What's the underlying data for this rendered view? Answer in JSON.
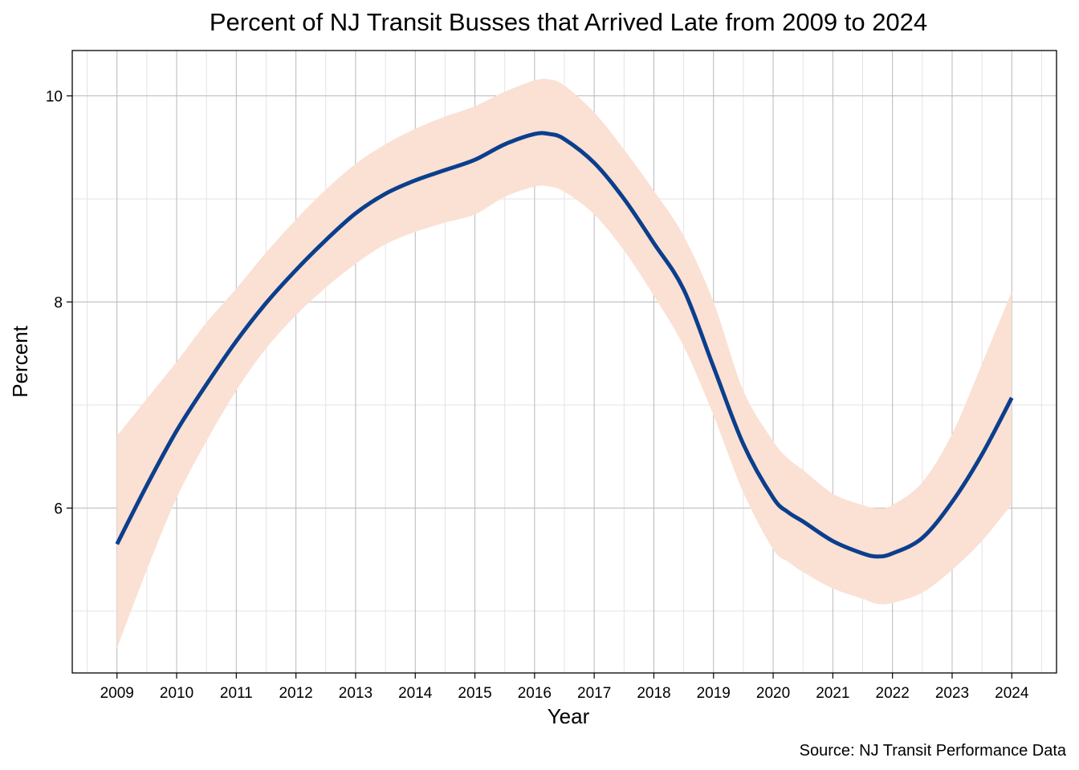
{
  "chart_data": {
    "type": "line",
    "title": "Percent of NJ Transit Busses that Arrived Late from 2009 to 2024",
    "xlabel": "Year",
    "ylabel": "Percent",
    "caption": "Source: NJ Transit Performance Data",
    "xlim": [
      2008.25,
      2024.75
    ],
    "ylim": [
      4.4,
      10.44
    ],
    "x_ticks": [
      2009,
      2010,
      2011,
      2012,
      2013,
      2014,
      2015,
      2016,
      2017,
      2018,
      2019,
      2020,
      2021,
      2022,
      2023,
      2024
    ],
    "y_ticks": [
      6,
      8,
      10
    ],
    "y_minor_ticks": [
      5,
      7,
      9
    ],
    "grid": true,
    "legend": "none",
    "colors": {
      "line": "#0b3f8c",
      "band": "#fbe0d4",
      "grid": "#b8b8b8",
      "border": "#000000"
    },
    "series": [
      {
        "type": "smooth",
        "x": [
          2009,
          2009.5,
          2010,
          2010.5,
          2011,
          2011.5,
          2012,
          2012.5,
          2013,
          2013.5,
          2014,
          2014.5,
          2015,
          2015.5,
          2016,
          2016.25,
          2016.5,
          2017,
          2017.5,
          2018,
          2018.5,
          2019,
          2019.5,
          2020,
          2020.25,
          2020.5,
          2021,
          2021.5,
          2021.75,
          2022,
          2022.5,
          2023,
          2023.5,
          2024
        ],
        "y": [
          5.65,
          6.22,
          6.75,
          7.2,
          7.62,
          7.99,
          8.31,
          8.6,
          8.86,
          9.05,
          9.18,
          9.28,
          9.38,
          9.53,
          9.63,
          9.63,
          9.58,
          9.35,
          9.0,
          8.57,
          8.12,
          7.37,
          6.62,
          6.1,
          5.96,
          5.87,
          5.68,
          5.56,
          5.53,
          5.56,
          5.71,
          6.06,
          6.52,
          7.07
        ]
      }
    ],
    "confidence_band": {
      "x": [
        2009,
        2009.5,
        2010,
        2010.5,
        2011,
        2011.5,
        2012,
        2012.5,
        2013,
        2013.5,
        2014,
        2014.5,
        2015,
        2015.5,
        2016,
        2016.25,
        2016.5,
        2017,
        2017.5,
        2018,
        2018.5,
        2019,
        2019.5,
        2020,
        2020.25,
        2020.5,
        2021,
        2021.5,
        2021.75,
        2022,
        2022.5,
        2023,
        2023.5,
        2024
      ],
      "upper": [
        6.7,
        7.06,
        7.42,
        7.8,
        8.13,
        8.48,
        8.8,
        9.09,
        9.34,
        9.53,
        9.68,
        9.8,
        9.9,
        10.04,
        10.15,
        10.16,
        10.1,
        9.84,
        9.48,
        9.08,
        8.64,
        8.0,
        7.14,
        6.65,
        6.48,
        6.37,
        6.14,
        6.03,
        6.0,
        6.03,
        6.25,
        6.72,
        7.4,
        8.1
      ],
      "lower": [
        4.64,
        5.4,
        6.1,
        6.65,
        7.14,
        7.55,
        7.87,
        8.14,
        8.37,
        8.56,
        8.68,
        8.77,
        8.85,
        9.02,
        9.12,
        9.12,
        9.07,
        8.85,
        8.5,
        8.06,
        7.57,
        6.9,
        6.15,
        5.6,
        5.48,
        5.38,
        5.22,
        5.12,
        5.07,
        5.08,
        5.18,
        5.4,
        5.68,
        6.04
      ]
    }
  }
}
